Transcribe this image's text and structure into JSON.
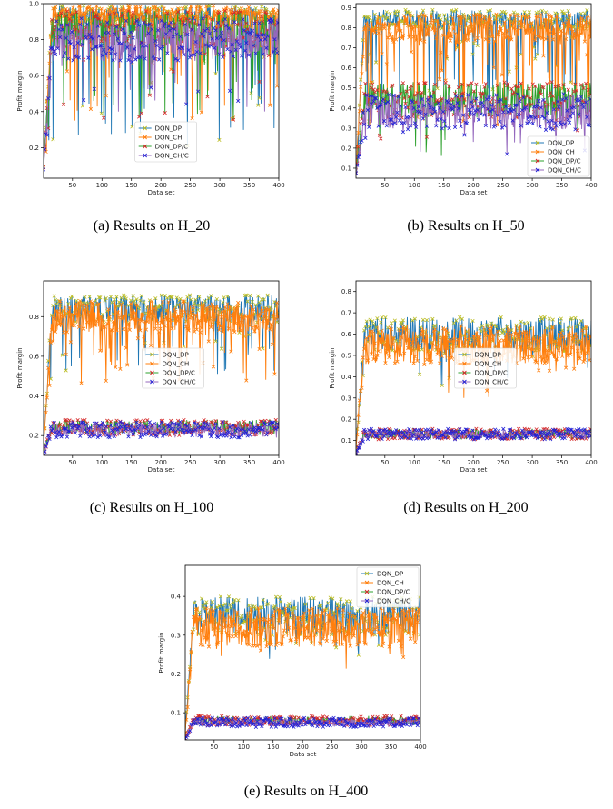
{
  "figures": [
    {
      "id": "a",
      "caption": "(a)  Results  on  H_20"
    },
    {
      "id": "b",
      "caption": "(b)  Results  on  H_50"
    },
    {
      "id": "c",
      "caption": "(c)  Results  on  H_100"
    },
    {
      "id": "d",
      "caption": "(d)  Results  on  H_200"
    },
    {
      "id": "e",
      "caption": "(e)  Results  on  H_400"
    }
  ],
  "chart_data": [
    {
      "type": "line",
      "panel": "a",
      "xlabel": "Data set",
      "ylabel": "Profit margin",
      "xlim": [
        1,
        400
      ],
      "ylim": [
        0.03,
        1.0
      ],
      "xticks": [
        50,
        100,
        150,
        200,
        250,
        300,
        350,
        400
      ],
      "yticks": [
        0.2,
        0.4,
        0.6,
        0.8,
        1.0
      ],
      "ytick_labels": [
        "0.2",
        "0.4",
        "0.6",
        "0.8",
        "1.0"
      ],
      "legend": "lower-center",
      "series": [
        {
          "name": "DQN_DP",
          "color": "#1f77b4",
          "marker": "x",
          "marker_color": "#bcbd22",
          "level": 0.93,
          "spread": 0.06,
          "dip_prob": 0.12,
          "dip_min": 0.2,
          "seed": 11
        },
        {
          "name": "DQN_CH",
          "color": "#ff7f0e",
          "marker": "x",
          "marker_color": "#ff7f0e",
          "level": 0.93,
          "spread": 0.06,
          "dip_prob": 0.1,
          "dip_min": 0.3,
          "seed": 12
        },
        {
          "name": "DQN_DP/C",
          "color": "#2ca02c",
          "marker": "x",
          "marker_color": "#d62728",
          "level": 0.86,
          "spread": 0.1,
          "dip_prob": 0.12,
          "dip_min": 0.35,
          "seed": 13
        },
        {
          "name": "DQN_CH/C",
          "color": "#9467bd",
          "marker": "x",
          "marker_color": "#1f1fd6",
          "level": 0.8,
          "spread": 0.12,
          "dip_prob": 0.08,
          "dip_min": 0.4,
          "seed": 14
        }
      ]
    },
    {
      "type": "line",
      "panel": "b",
      "xlabel": "Data set",
      "ylabel": "Profit margin",
      "xlim": [
        1,
        400
      ],
      "ylim": [
        0.05,
        0.92
      ],
      "xticks": [
        50,
        100,
        150,
        200,
        250,
        300,
        350,
        400
      ],
      "yticks": [
        0.1,
        0.2,
        0.3,
        0.4,
        0.5,
        0.6,
        0.7,
        0.8,
        0.9
      ],
      "ytick_labels": [
        "0.1",
        "0.2",
        "0.3",
        "0.4",
        "0.5",
        "0.6",
        "0.7",
        "0.8",
        "0.9"
      ],
      "legend": "lower-right",
      "series": [
        {
          "name": "DQN_DP",
          "color": "#1f77b4",
          "marker": "x",
          "marker_color": "#bcbd22",
          "level": 0.84,
          "spread": 0.05,
          "dip_prob": 0.15,
          "dip_min": 0.35,
          "seed": 21
        },
        {
          "name": "DQN_CH",
          "color": "#ff7f0e",
          "marker": "x",
          "marker_color": "#ff7f0e",
          "level": 0.8,
          "spread": 0.07,
          "dip_prob": 0.15,
          "dip_min": 0.3,
          "seed": 22
        },
        {
          "name": "DQN_DP/C",
          "color": "#2ca02c",
          "marker": "x",
          "marker_color": "#d62728",
          "level": 0.44,
          "spread": 0.09,
          "dip_prob": 0.05,
          "dip_min": 0.15,
          "seed": 23
        },
        {
          "name": "DQN_CH/C",
          "color": "#9467bd",
          "marker": "x",
          "marker_color": "#1f1fd6",
          "level": 0.38,
          "spread": 0.09,
          "dip_prob": 0.05,
          "dip_min": 0.15,
          "seed": 24
        }
      ]
    },
    {
      "type": "line",
      "panel": "c",
      "xlabel": "Data set",
      "ylabel": "Profit margin",
      "xlim": [
        1,
        400
      ],
      "ylim": [
        0.1,
        0.98
      ],
      "xticks": [
        50,
        100,
        150,
        200,
        250,
        300,
        350,
        400
      ],
      "yticks": [
        0.2,
        0.4,
        0.6,
        0.8
      ],
      "ytick_labels": [
        "0.2",
        "0.4",
        "0.6",
        "0.8"
      ],
      "legend": "center",
      "series": [
        {
          "name": "DQN_DP",
          "color": "#1f77b4",
          "marker": "x",
          "marker_color": "#bcbd22",
          "level": 0.84,
          "spread": 0.07,
          "dip_prob": 0.12,
          "dip_min": 0.5,
          "seed": 31
        },
        {
          "name": "DQN_CH",
          "color": "#ff7f0e",
          "marker": "x",
          "marker_color": "#ff7f0e",
          "level": 0.8,
          "spread": 0.08,
          "dip_prob": 0.12,
          "dip_min": 0.45,
          "seed": 32
        },
        {
          "name": "DQN_DP/C",
          "color": "#2ca02c",
          "marker": "x",
          "marker_color": "#d62728",
          "level": 0.24,
          "spread": 0.04,
          "dip_prob": 0.0,
          "dip_min": 0.15,
          "seed": 33
        },
        {
          "name": "DQN_CH/C",
          "color": "#9467bd",
          "marker": "x",
          "marker_color": "#1f1fd6",
          "level": 0.23,
          "spread": 0.04,
          "dip_prob": 0.0,
          "dip_min": 0.15,
          "seed": 34
        }
      ]
    },
    {
      "type": "line",
      "panel": "d",
      "xlabel": "Data set",
      "ylabel": "Profit margin",
      "xlim": [
        1,
        400
      ],
      "ylim": [
        0.03,
        0.85
      ],
      "xticks": [
        50,
        100,
        150,
        200,
        250,
        300,
        350,
        400
      ],
      "yticks": [
        0.1,
        0.2,
        0.3,
        0.4,
        0.5,
        0.6,
        0.7,
        0.8
      ],
      "ytick_labels": [
        "0.1",
        "0.2",
        "0.3",
        "0.4",
        "0.5",
        "0.6",
        "0.7",
        "0.8"
      ],
      "legend": "center",
      "series": [
        {
          "name": "DQN_DP",
          "color": "#1f77b4",
          "marker": "x",
          "marker_color": "#bcbd22",
          "level": 0.6,
          "spread": 0.08,
          "dip_prob": 0.05,
          "dip_min": 0.35,
          "seed": 41
        },
        {
          "name": "DQN_CH",
          "color": "#ff7f0e",
          "marker": "x",
          "marker_color": "#ff7f0e",
          "level": 0.55,
          "spread": 0.09,
          "dip_prob": 0.05,
          "dip_min": 0.3,
          "seed": 42
        },
        {
          "name": "DQN_DP/C",
          "color": "#2ca02c",
          "marker": "x",
          "marker_color": "#d62728",
          "level": 0.13,
          "spread": 0.025,
          "dip_prob": 0.0,
          "dip_min": 0.06,
          "seed": 43
        },
        {
          "name": "DQN_CH/C",
          "color": "#9467bd",
          "marker": "x",
          "marker_color": "#1f1fd6",
          "level": 0.13,
          "spread": 0.025,
          "dip_prob": 0.0,
          "dip_min": 0.06,
          "seed": 44
        }
      ]
    },
    {
      "type": "line",
      "panel": "e",
      "xlabel": "Data set",
      "ylabel": "Profit margin",
      "xlim": [
        1,
        400
      ],
      "ylim": [
        0.03,
        0.48
      ],
      "xticks": [
        50,
        100,
        150,
        200,
        250,
        300,
        350,
        400
      ],
      "yticks": [
        0.1,
        0.2,
        0.3,
        0.4
      ],
      "ytick_labels": [
        "0.1",
        "0.2",
        "0.3",
        "0.4"
      ],
      "legend": "top-right",
      "series": [
        {
          "name": "DQN_DP",
          "color": "#1f77b4",
          "marker": "x",
          "marker_color": "#bcbd22",
          "level": 0.35,
          "spread": 0.05,
          "dip_prob": 0.04,
          "dip_min": 0.2,
          "seed": 51
        },
        {
          "name": "DQN_CH",
          "color": "#ff7f0e",
          "marker": "x",
          "marker_color": "#ff7f0e",
          "level": 0.32,
          "spread": 0.05,
          "dip_prob": 0.04,
          "dip_min": 0.2,
          "seed": 52
        },
        {
          "name": "DQN_DP/C",
          "color": "#2ca02c",
          "marker": "x",
          "marker_color": "#d62728",
          "level": 0.08,
          "spread": 0.012,
          "dip_prob": 0.0,
          "dip_min": 0.05,
          "seed": 53
        },
        {
          "name": "DQN_CH/C",
          "color": "#9467bd",
          "marker": "x",
          "marker_color": "#1f1fd6",
          "level": 0.075,
          "spread": 0.012,
          "dip_prob": 0.0,
          "dip_min": 0.05,
          "seed": 54
        }
      ]
    }
  ]
}
